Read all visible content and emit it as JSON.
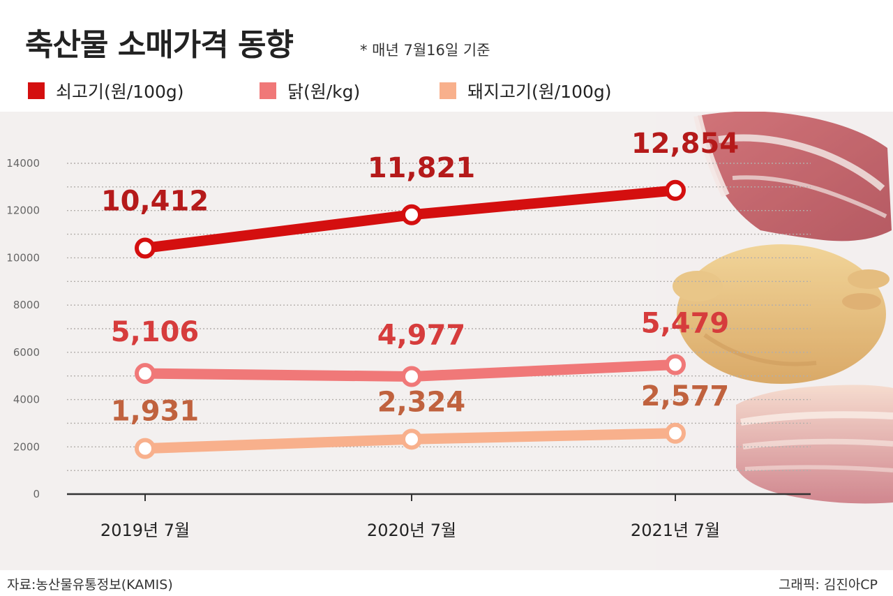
{
  "header": {
    "title": "축산물 소매가격 동향",
    "subtitle": "* 매년 7월16일 기준"
  },
  "footer": {
    "source": "자료:농산물유통정보(KAMIS)",
    "credit": "그래픽: 김진아CP"
  },
  "colors": {
    "beef": "#d40f0f",
    "chicken": "#f07878",
    "pork": "#f8b08c",
    "beef_label": "#b51a1a",
    "chicken_label": "#d63c3c",
    "pork_label": "#c0623e"
  },
  "chart_data": {
    "type": "line",
    "x": [
      "2019년 7월",
      "2020년 7월",
      "2021년 7월"
    ],
    "ylim": [
      0,
      14000
    ],
    "yticks": [
      0,
      2000,
      4000,
      6000,
      8000,
      10000,
      12000,
      14000
    ],
    "grid": true,
    "legend": "top-left",
    "series": [
      {
        "name": "쇠고기(원/100g)",
        "values": [
          10412,
          11821,
          12854
        ],
        "labels": [
          "10,412",
          "11,821",
          "12,854"
        ]
      },
      {
        "name": "닭(원/kg)",
        "values": [
          5106,
          4977,
          5479
        ],
        "labels": [
          "5,106",
          "4,977",
          "5,479"
        ]
      },
      {
        "name": "돼지고기(원/100g)",
        "values": [
          1931,
          2324,
          2577
        ],
        "labels": [
          "1,931",
          "2,324",
          "2,577"
        ]
      }
    ]
  }
}
